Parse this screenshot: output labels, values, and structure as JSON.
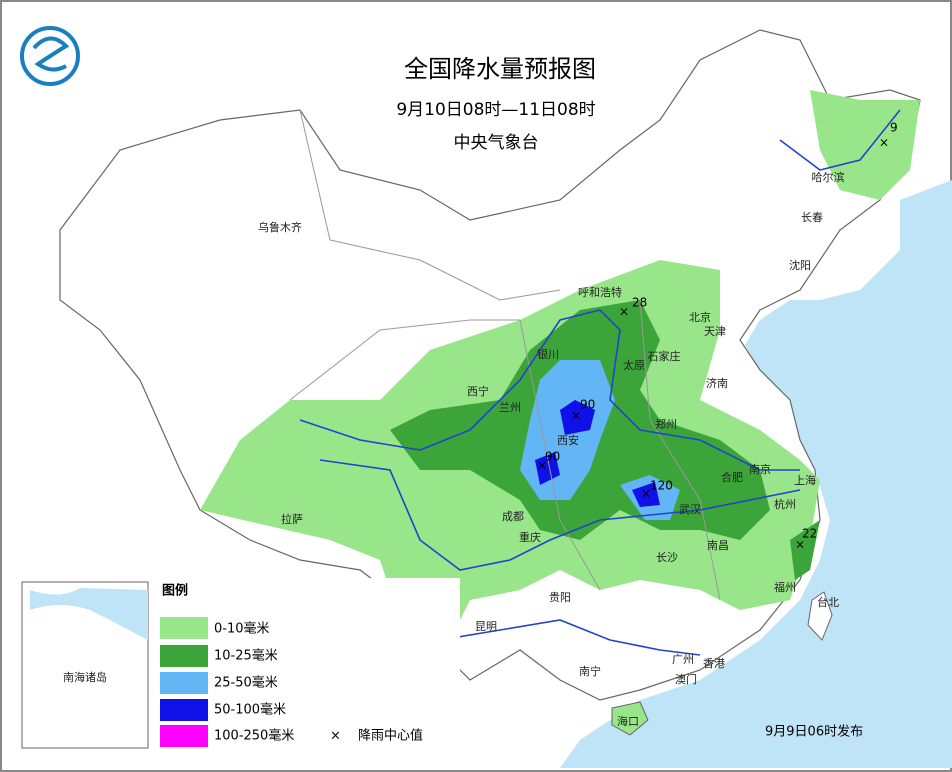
{
  "header": {
    "title": "全国降水量预报图",
    "period": "9月10日08时—11日08时",
    "issuer": "中央气象台"
  },
  "cities": [
    "乌鲁木齐",
    "哈尔滨",
    "长春",
    "沈阳",
    "呼和浩特",
    "北京",
    "天津",
    "银川",
    "石家庄",
    "太原",
    "西宁",
    "兰州",
    "济南",
    "郑州",
    "西安",
    "合肥",
    "南京",
    "上海",
    "杭州",
    "武汉",
    "成都",
    "重庆",
    "南昌",
    "长沙",
    "拉萨",
    "贵阳",
    "福州",
    "台北",
    "昆明",
    "南宁",
    "广州",
    "香港",
    "澳门",
    "海口"
  ],
  "rain_centers": [
    9,
    28,
    90,
    90,
    120,
    22
  ],
  "legend": {
    "title": "图例",
    "items": [
      {
        "label": "0-10毫米",
        "color": "#98e58a"
      },
      {
        "label": "10-25毫米",
        "color": "#3ca53a"
      },
      {
        "label": "25-50毫米",
        "color": "#62b6f5"
      },
      {
        "label": "50-100毫米",
        "color": "#1010e8"
      },
      {
        "label": "100-250毫米",
        "color": "#ff00ff"
      }
    ],
    "center_marker": "降雨中心值"
  },
  "inset": {
    "label": "南海诸岛"
  },
  "footer": {
    "issued": "9月9日06时发布"
  }
}
